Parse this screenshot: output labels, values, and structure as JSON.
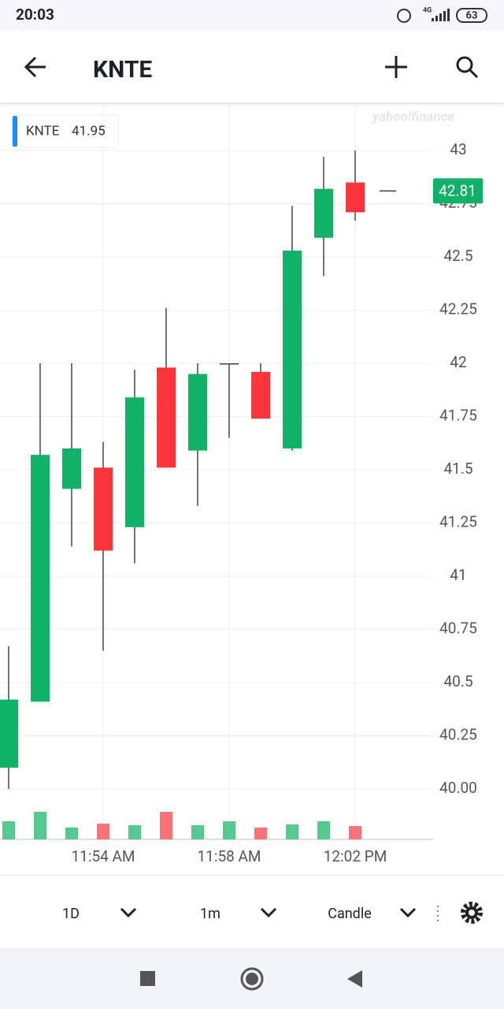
{
  "status": {
    "time": "20:03",
    "network": "4G",
    "battery": "63"
  },
  "header": {
    "title": "KNTE"
  },
  "chart_data": {
    "type": "candlestick",
    "watermark": "yahoo!finance",
    "legend": {
      "symbol": "KNTE",
      "value": "41.95"
    },
    "last_price": 42.81,
    "categories": [
      null,
      null,
      null,
      "11:54 AM",
      null,
      null,
      null,
      "11:58 AM",
      null,
      null,
      null,
      "12:02 PM"
    ],
    "open": [
      40.1,
      40.41,
      41.41,
      41.51,
      41.23,
      41.98,
      41.59,
      42.0,
      41.96,
      41.6,
      42.59,
      42.85
    ],
    "high": [
      40.67,
      42.0,
      42.0,
      41.63,
      41.97,
      42.26,
      42.0,
      42.0,
      42.0,
      42.74,
      42.97,
      43.0
    ],
    "low": [
      40.0,
      40.41,
      41.14,
      40.65,
      41.06,
      41.51,
      41.33,
      41.65,
      41.74,
      41.59,
      42.41,
      42.67
    ],
    "close": [
      40.42,
      41.57,
      41.6,
      41.12,
      41.84,
      41.51,
      41.95,
      42.0,
      41.74,
      42.53,
      42.82,
      42.71
    ],
    "volume": [
      23,
      35,
      15,
      20,
      18,
      35,
      18,
      23,
      15,
      19,
      23,
      17
    ],
    "up_color": "#12b168",
    "down_color": "#ff333a",
    "up_volume_color": "#55c98f",
    "down_volume_color": "#f77378",
    "ylim": [
      39.8,
      43.2
    ],
    "yticks": [
      {
        "value": 40,
        "label": "40.00"
      },
      40.25,
      40.5,
      40.75,
      41,
      41.25,
      41.5,
      41.75,
      42,
      42.25,
      42.5,
      42.75,
      43
    ],
    "grid": true
  },
  "toolbar": {
    "range": "1D",
    "interval": "1m",
    "chart_type": "Candle"
  }
}
